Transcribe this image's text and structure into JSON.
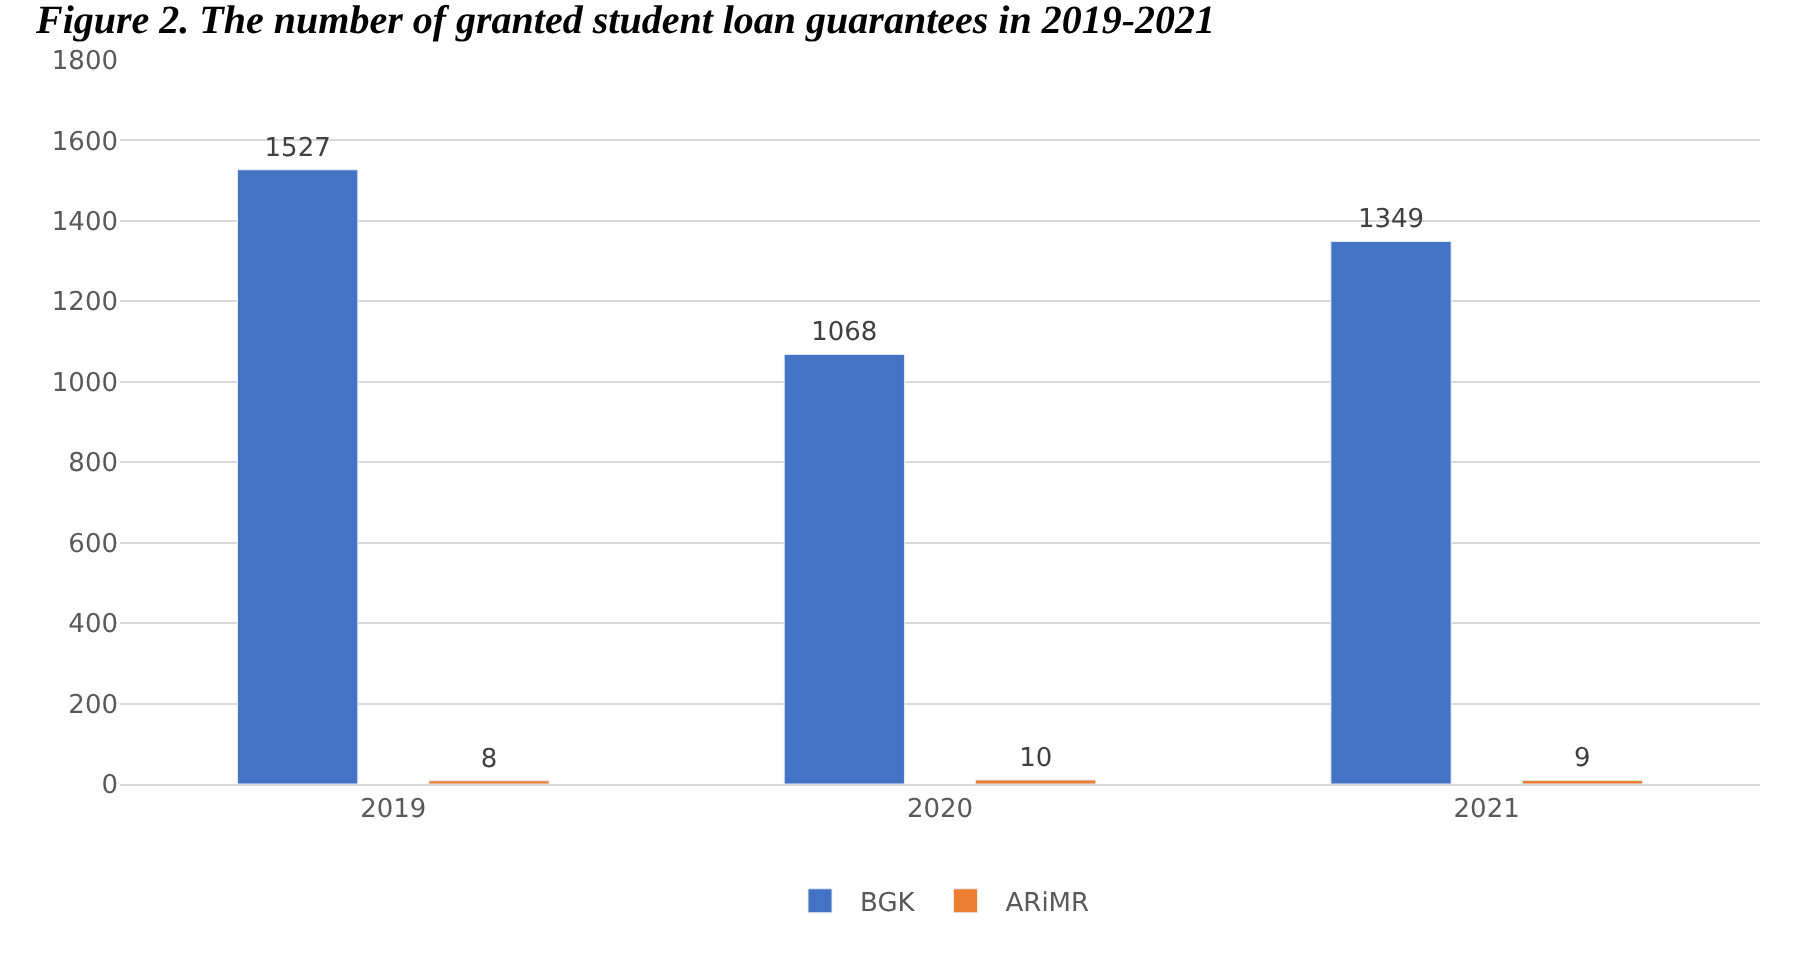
{
  "chart_data": {
    "type": "bar",
    "title": "Figure 2. The number of granted student loan guarantees in 2019-2021",
    "categories": [
      "2019",
      "2020",
      "2021"
    ],
    "series": [
      {
        "name": "BGK",
        "color": "#4472c4",
        "values": [
          1527,
          1068,
          1349
        ]
      },
      {
        "name": "ARiMR",
        "color": "#ed7d31",
        "values": [
          8,
          10,
          9
        ]
      }
    ],
    "ylim": [
      0,
      1800
    ],
    "yticks": [
      0,
      200,
      400,
      600,
      800,
      1000,
      1200,
      1400,
      1600,
      1800
    ],
    "grid": "y",
    "legend": "bottom",
    "data_labels": true
  }
}
